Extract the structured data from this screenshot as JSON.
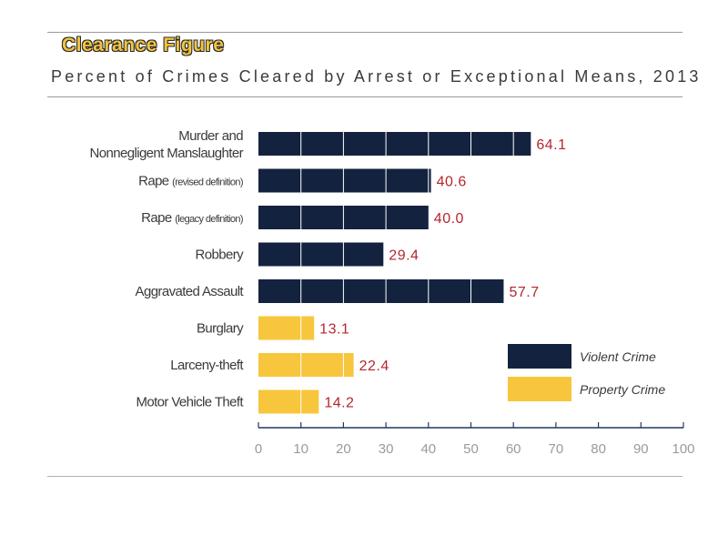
{
  "header": {
    "figure_label": "Clearance Figure",
    "subtitle": "Percent of Crimes Cleared by Arrest or Exceptional Means, 2013"
  },
  "colors": {
    "violent": "#13233f",
    "property": "#f7c63d",
    "value_label": "#b5262f",
    "axis": "#1f3a5f",
    "tick_label": "#9a9a9a"
  },
  "chart_data": {
    "type": "bar",
    "orientation": "horizontal",
    "title": "Percent of Crimes Cleared by Arrest or Exceptional Means, 2013",
    "xlabel": "",
    "ylabel": "",
    "xlim": [
      0,
      100
    ],
    "xticks": [
      0,
      10,
      20,
      30,
      40,
      50,
      60,
      70,
      80,
      90,
      100
    ],
    "grid": false,
    "legend_position": "lower-right",
    "legend": [
      {
        "name": "Violent Crime",
        "key": "violent"
      },
      {
        "name": "Property Crime",
        "key": "property"
      }
    ],
    "categories": [
      {
        "label_lines": [
          "Murder and",
          "Nonnegligent Manslaughter"
        ],
        "value": 64.1,
        "value_label": "64.1",
        "group": "violent"
      },
      {
        "label_main": "Rape",
        "label_small": "(revised definition)",
        "value": 40.6,
        "value_label": "40.6",
        "group": "violent"
      },
      {
        "label_main": "Rape",
        "label_small": "(legacy definition)",
        "value": 40.0,
        "value_label": "40.0",
        "group": "violent"
      },
      {
        "label_lines": [
          "Robbery"
        ],
        "value": 29.4,
        "value_label": "29.4",
        "group": "violent"
      },
      {
        "label_lines": [
          "Aggravated Assault"
        ],
        "value": 57.7,
        "value_label": "57.7",
        "group": "violent"
      },
      {
        "label_lines": [
          "Burglary"
        ],
        "value": 13.1,
        "value_label": "13.1",
        "group": "property"
      },
      {
        "label_lines": [
          "Larceny-theft"
        ],
        "value": 22.4,
        "value_label": "22.4",
        "group": "property"
      },
      {
        "label_lines": [
          "Motor Vehicle Theft"
        ],
        "value": 14.2,
        "value_label": "14.2",
        "group": "property"
      }
    ]
  }
}
